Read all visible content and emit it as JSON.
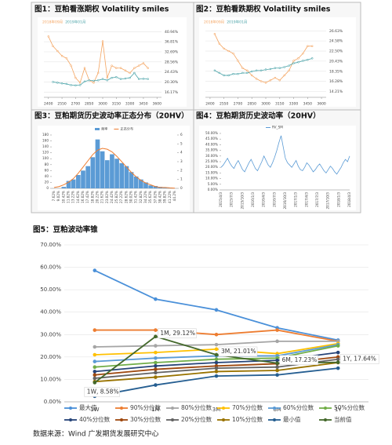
{
  "chart_data": [
    {
      "type": "line",
      "title": "图1：豆粕看涨期权 Volatility smiles",
      "x": [
        2400,
        2450,
        2500,
        2550,
        2600,
        2650,
        2700,
        2750,
        2800,
        2850,
        2900,
        2950,
        3000,
        3050,
        3100,
        3150,
        3200,
        3250,
        3300,
        3350,
        3400,
        3450,
        3500
      ],
      "series": [
        {
          "name": "2018年09月",
          "color": "#f4a460",
          "values": [
            39,
            35,
            33,
            31,
            30,
            27,
            22,
            20,
            26,
            21,
            20,
            24,
            37,
            22,
            27,
            26,
            26,
            25,
            24,
            26,
            27,
            28,
            26
          ]
        },
        {
          "name": "2019年01月",
          "color": "#4aa3a8",
          "values": [
            null,
            20.3,
            20,
            19.7,
            19.5,
            19,
            18.9,
            19,
            20.5,
            21,
            20.8,
            21,
            21.5,
            21,
            22,
            22.3,
            21.5,
            21.7,
            22,
            24,
            21.5,
            21.6,
            21.5
          ]
        }
      ],
      "xlim": [
        2350,
        3650
      ],
      "xticks": [
        2400,
        2550,
        2700,
        2850,
        3000,
        3150,
        3300,
        3450,
        3600
      ],
      "ylim": [
        14,
        43
      ],
      "yticks": [
        {
          "value": 16.17,
          "label": "16.17%"
        },
        {
          "value": 20.3,
          "label": "20.30%"
        },
        {
          "value": 24.43,
          "label": "24.43%"
        },
        {
          "value": 28.56,
          "label": "28.56%"
        },
        {
          "value": 32.69,
          "label": "32.69%"
        },
        {
          "value": 36.81,
          "label": "36.81%"
        },
        {
          "value": 40.94,
          "label": "40.94%"
        }
      ],
      "grid": true
    },
    {
      "type": "line",
      "title": "图2：豆粕看跌期权 Volatility smiles",
      "x": [
        2400,
        2450,
        2500,
        2550,
        2600,
        2650,
        2700,
        2750,
        2800,
        2850,
        2900,
        2950,
        3000,
        3050,
        3100,
        3150,
        3200,
        3250,
        3300,
        3350,
        3400,
        3450,
        3500
      ],
      "series": [
        {
          "name": "2018年09月",
          "color": "#f4a460",
          "values": [
            null,
            26,
            24,
            23,
            22.5,
            22,
            20.5,
            19,
            18.5,
            17.5,
            16.8,
            16.3,
            16,
            16.5,
            17,
            16.5,
            17.5,
            18.5,
            20.5,
            21,
            22,
            23.5,
            23.5
          ]
        },
        {
          "name": "2019年01月",
          "color": "#4aa3a8",
          "values": [
            null,
            18.5,
            18,
            17.5,
            17.5,
            17.8,
            17.8,
            18,
            18,
            18.3,
            18.5,
            18.5,
            18.7,
            18.8,
            19,
            19,
            19.2,
            19.5,
            20,
            20.2,
            20.5,
            20.7,
            21
          ]
        }
      ],
      "xlim": [
        2350,
        3650
      ],
      "xticks": [
        2400,
        2550,
        2700,
        2850,
        3000,
        3150,
        3300,
        3450,
        3600
      ],
      "ylim": [
        13,
        27.5
      ],
      "yticks": [
        {
          "value": 14.21,
          "label": "14.21%"
        },
        {
          "value": 16.28,
          "label": "16.28%"
        },
        {
          "value": 18.35,
          "label": "18.35%"
        },
        {
          "value": 20.43,
          "label": "20.43%"
        },
        {
          "value": 22.5,
          "label": "22.50%"
        },
        {
          "value": 24.58,
          "label": "24.58%"
        },
        {
          "value": 26.63,
          "label": "26.63%"
        }
      ],
      "grid": true
    },
    {
      "type": "bar",
      "title": "图3：豆粕期货历史波动率正态分布（20HV）",
      "categories": [
        "7.62%",
        "9.02%",
        "10.42%",
        "11.82%",
        "13.22%",
        "14.62%",
        "16.02%",
        "17.42%",
        "18.82%",
        "20.22%",
        "21.62%",
        "23.02%",
        "24.42%",
        "25.82%",
        "27.22%",
        "28.62%",
        "30.02%",
        "31.42%",
        "32.82%",
        "34.22%",
        "35.62%",
        "37.02%",
        "38.42%",
        "39.82%",
        "41.22%",
        "44.2%"
      ],
      "series": [
        {
          "name": "频率",
          "color": "#5b9bd5",
          "values": [
            0,
            0,
            5,
            25,
            30,
            45,
            60,
            75,
            105,
            165,
            125,
            95,
            115,
            100,
            85,
            75,
            55,
            40,
            30,
            20,
            10,
            8,
            5,
            3,
            2,
            0
          ]
        },
        {
          "name": "正态分布",
          "color": "#ed7d31",
          "axis": "y2",
          "values": [
            0.1,
            0.2,
            0.4,
            0.7,
            1.1,
            1.7,
            2.4,
            3.1,
            3.8,
            4.3,
            4.5,
            4.4,
            4.1,
            3.6,
            3,
            2.4,
            1.8,
            1.3,
            0.9,
            0.6,
            0.4,
            0.2,
            0.1,
            0.1,
            0.05,
            0.02
          ]
        }
      ],
      "ylim": [
        0,
        180
      ],
      "yticks": [
        0,
        20,
        40,
        60,
        80,
        100,
        120,
        140,
        160,
        180
      ],
      "y2lim": [
        0,
        6
      ],
      "y2ticks": [
        0,
        1,
        2,
        3,
        4,
        5,
        6
      ]
    },
    {
      "type": "line",
      "title": "图4：豆粕期货历史波动率（20HV）",
      "categories": [
        "2015/4/3",
        null,
        null,
        null,
        null,
        "2015/7/3",
        null,
        null,
        null,
        null,
        "2015/10/3",
        null,
        null,
        null,
        null,
        "2016/1/3",
        null,
        null,
        null,
        null,
        "2016/4/3",
        null,
        null,
        null,
        null,
        "2016/7/3",
        null,
        null,
        null,
        null,
        "2016/10/3",
        null,
        null,
        null,
        null,
        "2017/1/3",
        null,
        null,
        null,
        null,
        "2017/4/3",
        null,
        null,
        null,
        null,
        "2017/7/3",
        null,
        null,
        null,
        null,
        "2017/10/3",
        null,
        null,
        null,
        null,
        "2018/1/3",
        null,
        null,
        null,
        null,
        "2018/4/3"
      ],
      "series": [
        {
          "name": "RV_SM",
          "color": "#5b9bd5",
          "values": [
            20,
            22,
            25,
            28,
            24,
            21,
            19,
            23,
            26,
            22,
            18,
            16,
            20,
            24,
            27,
            23,
            19,
            17,
            21,
            25,
            30,
            26,
            22,
            20,
            24,
            29,
            35,
            42,
            48,
            38,
            28,
            24,
            22,
            20,
            23,
            26,
            21,
            18,
            17,
            20,
            24,
            22,
            19,
            16,
            18,
            21,
            23,
            20,
            17,
            15,
            18,
            21,
            19,
            16,
            14,
            17,
            20,
            24,
            27,
            25,
            30
          ]
        }
      ],
      "ylim": [
        0,
        50
      ],
      "yticks": [
        {
          "value": 0,
          "label": "0.00%"
        },
        {
          "value": 5,
          "label": "5.00%"
        },
        {
          "value": 10,
          "label": "10.00%"
        },
        {
          "value": 15,
          "label": "15.00%"
        },
        {
          "value": 20,
          "label": "20.00%"
        },
        {
          "value": 25,
          "label": "25.00%"
        },
        {
          "value": 30,
          "label": "30.00%"
        },
        {
          "value": 35,
          "label": "35.00%"
        },
        {
          "value": 40,
          "label": "40.00%"
        },
        {
          "value": 45,
          "label": "45.00%"
        },
        {
          "value": 50,
          "label": "50.00%"
        }
      ]
    },
    {
      "type": "line",
      "title": "图5：豆粕波动率锥",
      "categories": [
        "1W",
        "1M",
        "3M",
        "6M",
        "1Y"
      ],
      "series": [
        {
          "name": "最大值",
          "color": "#4a90d9",
          "values": [
            58.6,
            45.8,
            41,
            33,
            27.5
          ]
        },
        {
          "name": "90%分位数",
          "color": "#ed7d31",
          "values": [
            32,
            32,
            30,
            32,
            27
          ]
        },
        {
          "name": "80%分位数",
          "color": "#a5a5a5",
          "values": [
            24.5,
            25,
            25.5,
            27,
            27
          ]
        },
        {
          "name": "70%分位数",
          "color": "#ffc000",
          "values": [
            21,
            22,
            23.5,
            21.5,
            26
          ]
        },
        {
          "name": "60%分位数",
          "color": "#5b9bd5",
          "values": [
            18,
            19.5,
            20.5,
            20.5,
            25.5
          ]
        },
        {
          "name": "50%分位数",
          "color": "#70ad47",
          "values": [
            15.5,
            17.5,
            19,
            19.5,
            25
          ]
        },
        {
          "name": "40%分位数",
          "color": "#264478",
          "values": [
            13.5,
            16,
            17.5,
            18.5,
            22
          ]
        },
        {
          "name": "30%分位数",
          "color": "#9e480e",
          "values": [
            12,
            14.5,
            16,
            17,
            20
          ]
        },
        {
          "name": "20%分位数",
          "color": "#636363",
          "values": [
            10.5,
            13,
            15,
            15.5,
            19
          ]
        },
        {
          "name": "10%分位数",
          "color": "#997300",
          "values": [
            9,
            11,
            13.5,
            14,
            17.5
          ]
        },
        {
          "name": "最小值",
          "color": "#255e91",
          "values": [
            2.5,
            7.5,
            11.5,
            12,
            15
          ]
        },
        {
          "name": "当前值",
          "color": "#43682b",
          "values": [
            8.58,
            29.12,
            21.01,
            17.23,
            17.64
          ],
          "value_labels": [
            "1W, 8.58%",
            "1M, 29.12%",
            "3M, 21.01%",
            "6M, 17.23%",
            "1Y, 17.64%"
          ]
        }
      ],
      "ylim": [
        0,
        70
      ],
      "yticks": [
        {
          "value": 0,
          "label": "0.00%"
        },
        {
          "value": 10,
          "label": "10.00%"
        },
        {
          "value": 20,
          "label": "20.00%"
        },
        {
          "value": 30,
          "label": "30.00%"
        },
        {
          "value": 40,
          "label": "40.00%"
        },
        {
          "value": 50,
          "label": "50.00%"
        },
        {
          "value": 60,
          "label": "60.00%"
        },
        {
          "value": 70,
          "label": "70.00%"
        }
      ],
      "grid": true
    }
  ],
  "source": "数据来源：Wind 广发期货发展研究中心"
}
